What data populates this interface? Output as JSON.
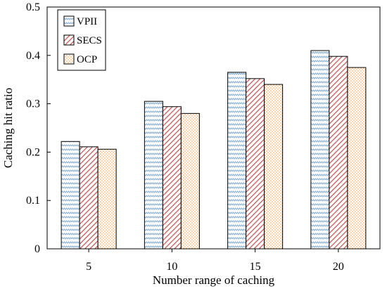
{
  "chart_data": {
    "type": "bar",
    "title": "",
    "xlabel": "Number range of caching",
    "ylabel": "Caching hit ratio",
    "categories": [
      "5",
      "10",
      "15",
      "20"
    ],
    "ylim": [
      0,
      0.5
    ],
    "yticks": [
      "0",
      "0.1",
      "0.2",
      "0.3",
      "0.4",
      "0.5"
    ],
    "legend_position": "top-left",
    "grid": false,
    "series": [
      {
        "name": "VPII",
        "values": [
          0.222,
          0.305,
          0.365,
          0.41
        ],
        "color": "#a7c6e0",
        "pattern": "zigzag"
      },
      {
        "name": "SECS",
        "values": [
          0.211,
          0.294,
          0.352,
          0.398
        ],
        "color": "#c0504d",
        "pattern": "diagonal"
      },
      {
        "name": "OCP",
        "values": [
          0.206,
          0.28,
          0.34,
          0.375
        ],
        "color": "#f0a050",
        "pattern": "dots"
      }
    ]
  }
}
